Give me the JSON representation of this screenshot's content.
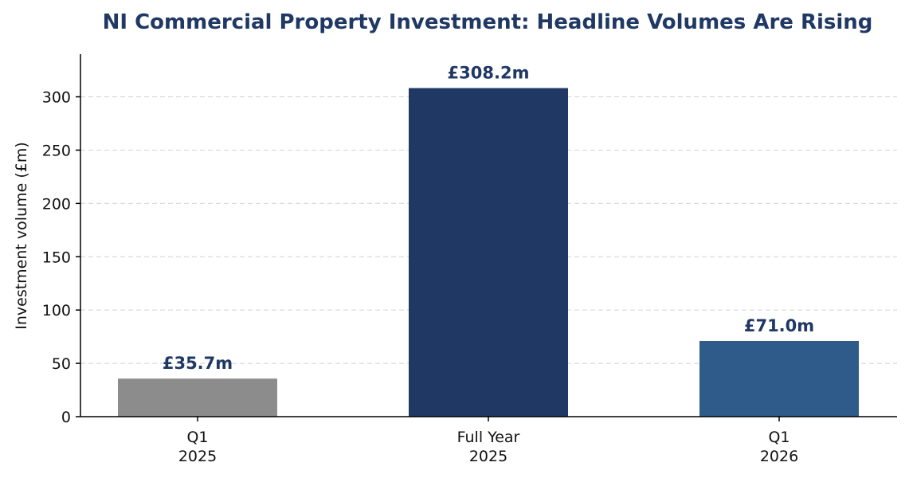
{
  "chart_data": {
    "type": "bar",
    "title": "NI Commercial Property Investment: Headline Volumes Are Rising",
    "xlabel": "",
    "ylabel": "Investment volume (£m)",
    "categories": [
      [
        "Q1",
        "2025"
      ],
      [
        "Full Year",
        "2025"
      ],
      [
        "Q1",
        "2026"
      ]
    ],
    "values": [
      35.7,
      308.2,
      71.0
    ],
    "data_labels": [
      "£35.7m",
      "£308.2m",
      "£71.0m"
    ],
    "bar_colors": [
      "#8c8c8c",
      "#203864",
      "#2e5b8a"
    ],
    "ylim": [
      0,
      340
    ],
    "yticks": [
      0,
      50,
      100,
      150,
      200,
      250,
      300
    ],
    "grid": "horizontal-dashed",
    "colors": {
      "title": "#1f3864",
      "data_label": "#1f3864",
      "grid": "#d9d9d9",
      "axis": "#000000"
    }
  }
}
